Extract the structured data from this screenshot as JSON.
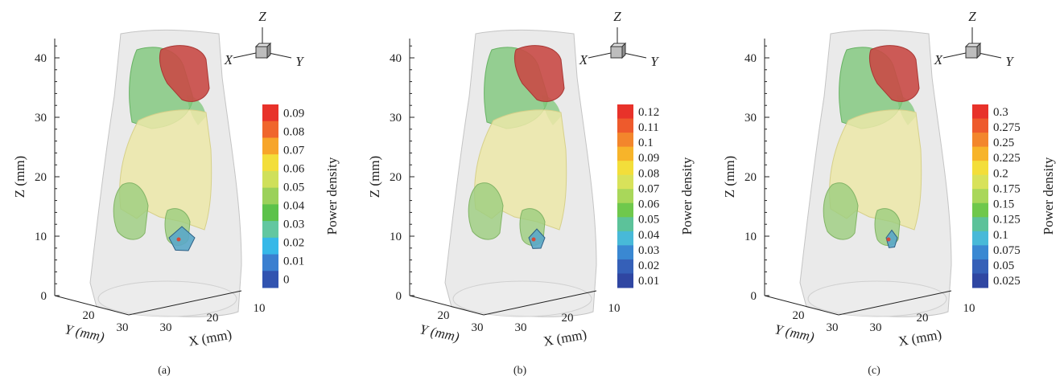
{
  "panels": [
    {
      "caption": "(a)",
      "z_axis_label": "Z (mm)",
      "x_axis_label": "X (mm)",
      "y_axis_label": "Y (mm)",
      "z_ticks": [
        "0",
        "10",
        "20",
        "30",
        "40"
      ],
      "x_ticks": [
        "30",
        "20",
        "10"
      ],
      "y_ticks": [
        "20",
        "30"
      ],
      "triad": {
        "z": "Z",
        "x": "X",
        "y": "Y"
      },
      "colorbar_title": "Power density",
      "colorbar_labels": [
        "0.09",
        "0.08",
        "0.07",
        "0.06",
        "0.05",
        "0.04",
        "0.03",
        "0.02",
        "0.01",
        "0"
      ],
      "colorbar_colors": [
        "#e8322a",
        "#f0662c",
        "#f7a52a",
        "#f3de3a",
        "#cfe05a",
        "#9bd15a",
        "#5cc24a",
        "#62c7a0",
        "#36b8e8",
        "#3a7fd0",
        "#3153b0"
      ]
    },
    {
      "caption": "(b)",
      "z_axis_label": "Z (mm)",
      "x_axis_label": "X (mm)",
      "y_axis_label": "Y (mm)",
      "z_ticks": [
        "0",
        "10",
        "20",
        "30",
        "40"
      ],
      "x_ticks": [
        "30",
        "20",
        "10"
      ],
      "y_ticks": [
        "20",
        "30"
      ],
      "triad": {
        "z": "Z",
        "x": "X",
        "y": "Y"
      },
      "colorbar_title": "Power density",
      "colorbar_labels": [
        "0.12",
        "0.11",
        "0.1",
        "0.09",
        "0.08",
        "0.07",
        "0.06",
        "0.05",
        "0.04",
        "0.03",
        "0.02",
        "0.01"
      ],
      "colorbar_colors": [
        "#e8322a",
        "#ee5a2c",
        "#f3862c",
        "#f7b42a",
        "#f3de3a",
        "#d8e25a",
        "#a9d75a",
        "#6fc84c",
        "#5cc29a",
        "#48b9d8",
        "#3a88d2",
        "#3560b8",
        "#2f46a2"
      ]
    },
    {
      "caption": "(c)",
      "z_axis_label": "Z (mm)",
      "x_axis_label": "X (mm)",
      "y_axis_label": "Y (mm)",
      "z_ticks": [
        "0",
        "10",
        "20",
        "30",
        "40"
      ],
      "x_ticks": [
        "30",
        "20",
        "10"
      ],
      "y_ticks": [
        "20",
        "30"
      ],
      "triad": {
        "z": "Z",
        "x": "X",
        "y": "Y"
      },
      "colorbar_title": "Power density",
      "colorbar_labels": [
        "0.3",
        "0.275",
        "0.25",
        "0.225",
        "0.2",
        "0.175",
        "0.15",
        "0.125",
        "0.1",
        "0.075",
        "0.05",
        "0.025"
      ],
      "colorbar_colors": [
        "#e8322a",
        "#ee5a2c",
        "#f3862c",
        "#f7b42a",
        "#f3de3a",
        "#d8e25a",
        "#a9d75a",
        "#6fc84c",
        "#5cc29a",
        "#48b9d8",
        "#3a88d2",
        "#3560b8",
        "#2f46a2"
      ]
    }
  ],
  "organ_colors": {
    "body": "#d8d8d8",
    "heart": "#c94a46",
    "lung": "#7ec77a",
    "liver": "#ece8a8",
    "kidney": "#9ccd7e",
    "tumor": "#5aa7c8"
  }
}
